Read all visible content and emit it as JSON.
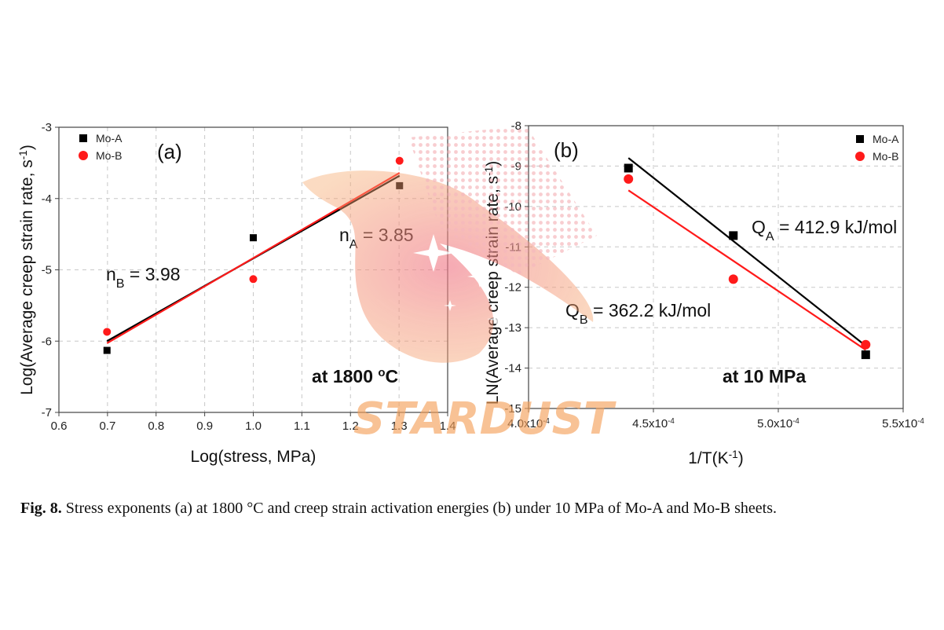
{
  "chart_data": [
    {
      "panel": "(a)",
      "type": "scatter",
      "xlabel": "Log(stress, MPa)",
      "ylabel": "Log(Average creep strain rate, s",
      "ylabel_sup": "-1",
      "ylabel_end": ")",
      "xlim": [
        0.6,
        1.4
      ],
      "ylim": [
        -7,
        -3
      ],
      "x_ticks": [
        "0.6",
        "0.7",
        "0.8",
        "0.9",
        "1.0",
        "1.1",
        "1.2",
        "1.3",
        "1.4"
      ],
      "y_ticks": [
        "-3",
        "-4",
        "-5",
        "-6",
        "-7"
      ],
      "grid": true,
      "legend_position": "top-left",
      "series": [
        {
          "name": "Mo-A",
          "marker": "square",
          "color": "#000000",
          "x": [
            0.699,
            1.0,
            1.301
          ],
          "y": [
            -6.13,
            -4.55,
            -3.82
          ],
          "fit": {
            "x": [
              0.699,
              1.301
            ],
            "y": [
              -6.0,
              -3.68
            ]
          }
        },
        {
          "name": "Mo-B",
          "marker": "circle",
          "color": "#ff1a1a",
          "x": [
            0.699,
            1.0,
            1.301
          ],
          "y": [
            -5.87,
            -5.13,
            -3.47
          ],
          "fit": {
            "x": [
              0.699,
              1.301
            ],
            "y": [
              -6.03,
              -3.64
            ]
          }
        }
      ],
      "annotations": {
        "nA_main": "n",
        "nA_sub": "A",
        "nA_val": " = 3.85",
        "nB_main": "n",
        "nB_sub": "B",
        "nB_val": " = 3.98",
        "condition": "at 1800 ",
        "condition_sup": "o",
        "condition_end": "C"
      }
    },
    {
      "panel": "(b)",
      "type": "scatter",
      "xlabel": "1/T(K",
      "xlabel_sup": "-1",
      "xlabel_end": ")",
      "ylabel": "LN(Average creep strain rate, s",
      "ylabel_sup": "-1",
      "ylabel_end": ")",
      "xlim": [
        0.0004,
        0.00055
      ],
      "ylim": [
        -15,
        -8
      ],
      "x_ticks": [
        {
          "mant": "4.0x10",
          "exp": "-4"
        },
        {
          "mant": "4.5x10",
          "exp": "-4"
        },
        {
          "mant": "5.0x10",
          "exp": "-4"
        },
        {
          "mant": "5.5x10",
          "exp": "-4"
        }
      ],
      "y_ticks": [
        "-8",
        "-9",
        "-10",
        "-11",
        "-12",
        "-13",
        "-14",
        "-15"
      ],
      "grid": true,
      "legend_position": "top-right",
      "series": [
        {
          "name": "Mo-A",
          "marker": "square",
          "color": "#000000",
          "x": [
            0.00044,
            0.000482,
            0.000535
          ],
          "y": [
            -9.05,
            -10.72,
            -13.67
          ],
          "fit": {
            "x": [
              0.00044,
              0.000535
            ],
            "y": [
              -8.8,
              -13.45
            ]
          }
        },
        {
          "name": "Mo-B",
          "marker": "circle",
          "color": "#ff1a1a",
          "x": [
            0.00044,
            0.000482,
            0.000535
          ],
          "y": [
            -9.32,
            -11.8,
            -13.42
          ],
          "fit": {
            "x": [
              0.00044,
              0.000535
            ],
            "y": [
              -9.6,
              -13.55
            ]
          }
        }
      ],
      "annotations": {
        "QA_main": "Q",
        "QA_sub": "A",
        "QA_val": " = 412.9 kJ/mol",
        "QB_main": "Q",
        "QB_sub": "B",
        "QB_val": " = 362.2 kJ/mol",
        "condition": "at 10 MPa"
      }
    }
  ],
  "watermark": {
    "text": "STARDUST",
    "color": "#f5a05a"
  },
  "caption": {
    "label": "Fig. 8.",
    "text": " Stress exponents (a) at 1800 °C and creep strain activation energies (b) under 10 MPa of Mo-A and Mo-B sheets."
  }
}
